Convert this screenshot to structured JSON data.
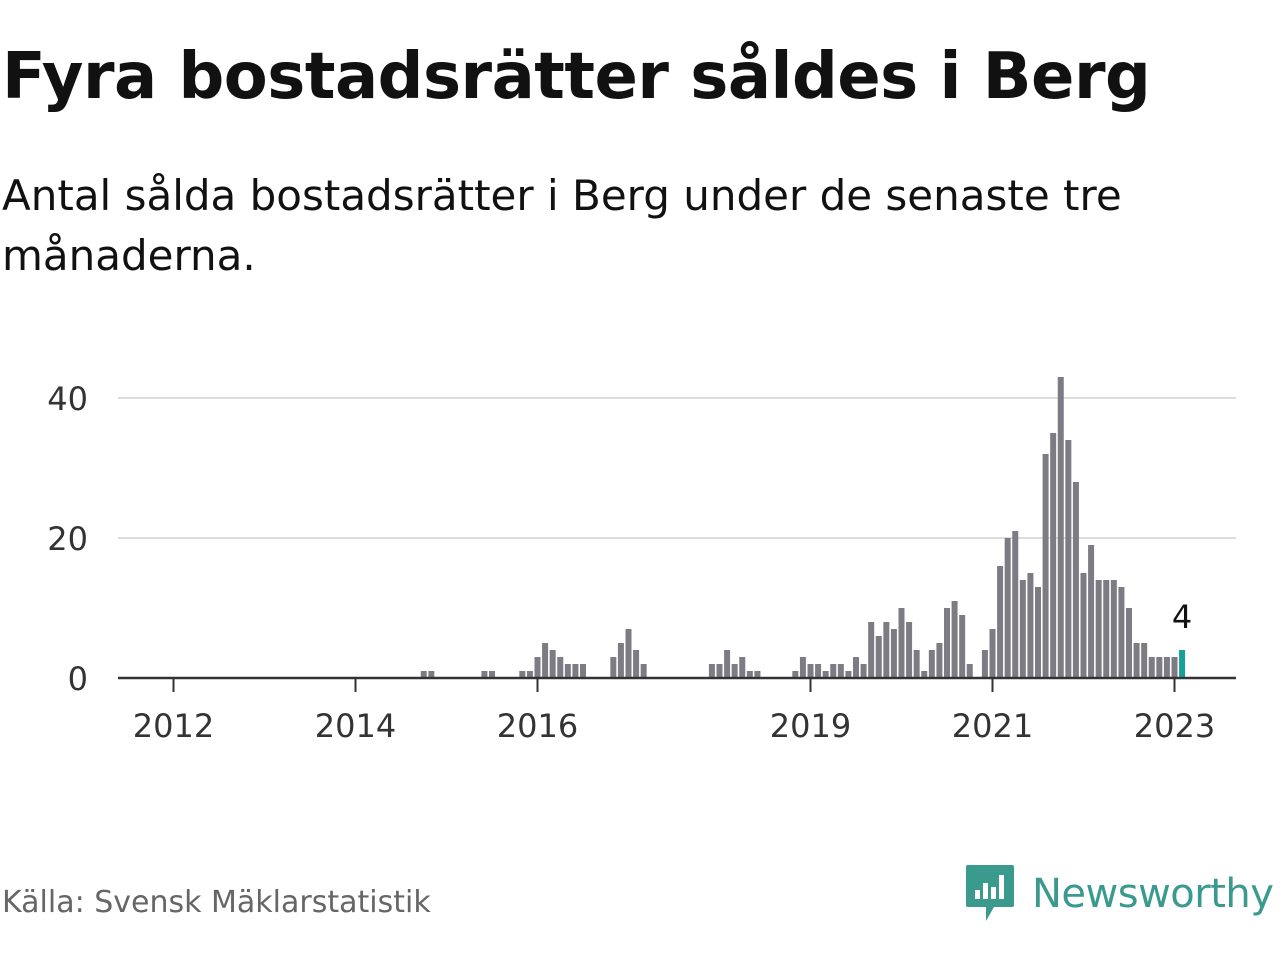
{
  "header": {
    "title": "Fyra bostadsrätter såldes i Berg",
    "subtitle": "Antal sålda bostadsrätter i Berg under de senaste tre månaderna."
  },
  "footer": {
    "source": "Källa: Svensk Mäklarstatistik",
    "brand": "Newsworthy"
  },
  "colors": {
    "bar": "#7d7c84",
    "highlight": "#17a098",
    "grid": "#dcdcdc",
    "axis": "#333333",
    "brand": "#3a9a8e"
  },
  "icons": {
    "logo": "bar-chart-speech-bubble-icon"
  },
  "chart_data": {
    "type": "bar",
    "title": "Fyra bostadsrätter såldes i Berg",
    "subtitle": "Antal sålda bostadsrätter i Berg under de senaste tre månaderna.",
    "xlabel": "",
    "ylabel": "",
    "x_ticks": [
      "2012",
      "2014",
      "2016",
      "2019",
      "2021",
      "2023"
    ],
    "y_ticks": [
      0,
      20,
      40
    ],
    "ylim": [
      0,
      43
    ],
    "grid": true,
    "legend": "none",
    "highlight_label": "4",
    "points": [
      {
        "x": "2014-10",
        "y": 1
      },
      {
        "x": "2014-11",
        "y": 1
      },
      {
        "x": "2015-06",
        "y": 1
      },
      {
        "x": "2015-07",
        "y": 1
      },
      {
        "x": "2015-11",
        "y": 1
      },
      {
        "x": "2015-12",
        "y": 1
      },
      {
        "x": "2016-01",
        "y": 3
      },
      {
        "x": "2016-02",
        "y": 5
      },
      {
        "x": "2016-03",
        "y": 4
      },
      {
        "x": "2016-04",
        "y": 3
      },
      {
        "x": "2016-05",
        "y": 2
      },
      {
        "x": "2016-06",
        "y": 2
      },
      {
        "x": "2016-07",
        "y": 2
      },
      {
        "x": "2016-11",
        "y": 3
      },
      {
        "x": "2016-12",
        "y": 5
      },
      {
        "x": "2017-01",
        "y": 7
      },
      {
        "x": "2017-02",
        "y": 4
      },
      {
        "x": "2017-03",
        "y": 2
      },
      {
        "x": "2017-12",
        "y": 2
      },
      {
        "x": "2018-01",
        "y": 2
      },
      {
        "x": "2018-02",
        "y": 4
      },
      {
        "x": "2018-03",
        "y": 2
      },
      {
        "x": "2018-04",
        "y": 3
      },
      {
        "x": "2018-05",
        "y": 1
      },
      {
        "x": "2018-06",
        "y": 1
      },
      {
        "x": "2018-11",
        "y": 1
      },
      {
        "x": "2018-12",
        "y": 3
      },
      {
        "x": "2019-01",
        "y": 2
      },
      {
        "x": "2019-02",
        "y": 2
      },
      {
        "x": "2019-03",
        "y": 1
      },
      {
        "x": "2019-04",
        "y": 2
      },
      {
        "x": "2019-05",
        "y": 2
      },
      {
        "x": "2019-06",
        "y": 1
      },
      {
        "x": "2019-07",
        "y": 3
      },
      {
        "x": "2019-08",
        "y": 2
      },
      {
        "x": "2019-09",
        "y": 8
      },
      {
        "x": "2019-10",
        "y": 6
      },
      {
        "x": "2019-11",
        "y": 8
      },
      {
        "x": "2019-12",
        "y": 7
      },
      {
        "x": "2020-01",
        "y": 10
      },
      {
        "x": "2020-02",
        "y": 8
      },
      {
        "x": "2020-03",
        "y": 4
      },
      {
        "x": "2020-04",
        "y": 1
      },
      {
        "x": "2020-05",
        "y": 4
      },
      {
        "x": "2020-06",
        "y": 5
      },
      {
        "x": "2020-07",
        "y": 10
      },
      {
        "x": "2020-08",
        "y": 11
      },
      {
        "x": "2020-09",
        "y": 9
      },
      {
        "x": "2020-10",
        "y": 2
      },
      {
        "x": "2020-12",
        "y": 4
      },
      {
        "x": "2021-01",
        "y": 7
      },
      {
        "x": "2021-02",
        "y": 16
      },
      {
        "x": "2021-03",
        "y": 20
      },
      {
        "x": "2021-04",
        "y": 21
      },
      {
        "x": "2021-05",
        "y": 14
      },
      {
        "x": "2021-06",
        "y": 15
      },
      {
        "x": "2021-07",
        "y": 13
      },
      {
        "x": "2021-08",
        "y": 32
      },
      {
        "x": "2021-09",
        "y": 35
      },
      {
        "x": "2021-10",
        "y": 43
      },
      {
        "x": "2021-11",
        "y": 34
      },
      {
        "x": "2021-12",
        "y": 28
      },
      {
        "x": "2022-01",
        "y": 15
      },
      {
        "x": "2022-02",
        "y": 19
      },
      {
        "x": "2022-03",
        "y": 14
      },
      {
        "x": "2022-04",
        "y": 14
      },
      {
        "x": "2022-05",
        "y": 14
      },
      {
        "x": "2022-06",
        "y": 13
      },
      {
        "x": "2022-07",
        "y": 10
      },
      {
        "x": "2022-08",
        "y": 5
      },
      {
        "x": "2022-09",
        "y": 5
      },
      {
        "x": "2022-10",
        "y": 3
      },
      {
        "x": "2022-11",
        "y": 3
      },
      {
        "x": "2022-12",
        "y": 3
      },
      {
        "x": "2023-01",
        "y": 3
      },
      {
        "x": "2023-02",
        "y": 4,
        "highlight": true
      }
    ]
  }
}
